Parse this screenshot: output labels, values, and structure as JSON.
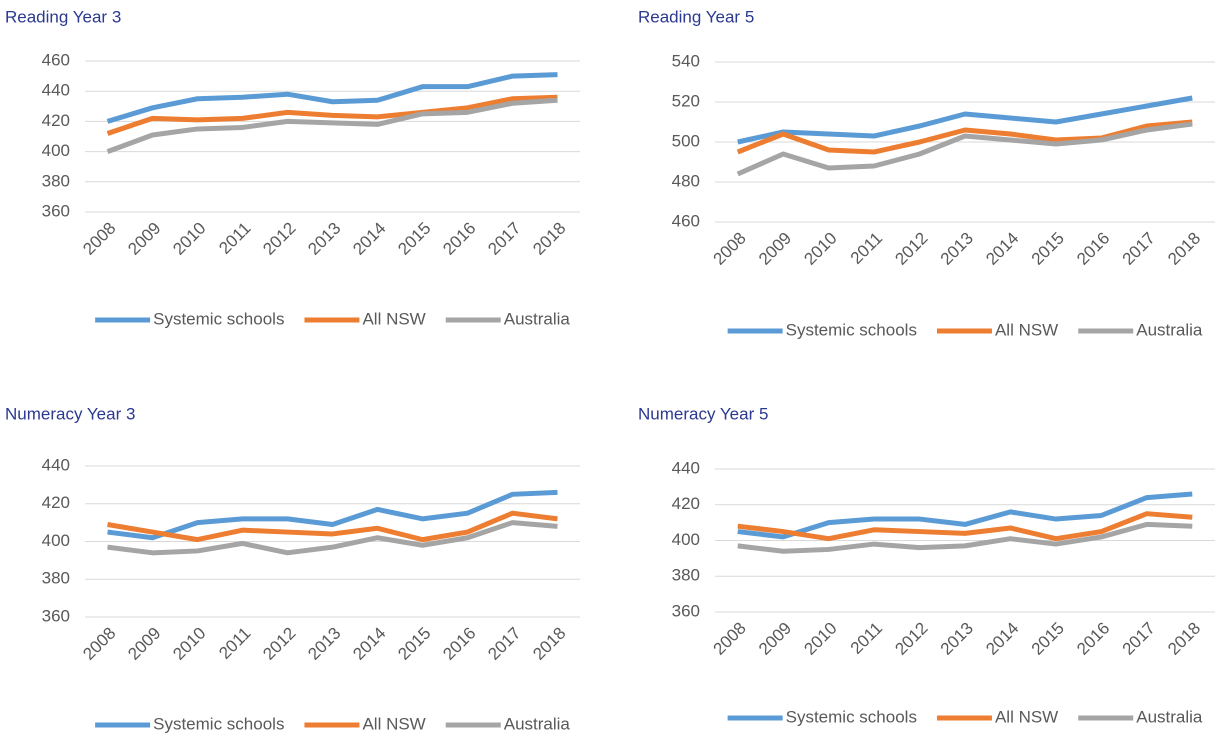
{
  "chart_data": [
    {
      "type": "line",
      "title": "Reading Year 3",
      "categories": [
        "2008",
        "2009",
        "2010",
        "2011",
        "2012",
        "2013",
        "2014",
        "2015",
        "2016",
        "2017",
        "2018"
      ],
      "series": [
        {
          "name": "Systemic schools",
          "color": "#5b9bd5",
          "values": [
            420,
            429,
            435,
            436,
            438,
            433,
            434,
            443,
            443,
            450,
            451
          ]
        },
        {
          "name": "All NSW",
          "color": "#ed7d31",
          "values": [
            412,
            422,
            421,
            422,
            426,
            424,
            423,
            426,
            429,
            435,
            436
          ]
        },
        {
          "name": "Australia",
          "color": "#a5a5a5",
          "values": [
            400,
            411,
            415,
            416,
            420,
            419,
            418,
            425,
            426,
            432,
            434
          ]
        }
      ],
      "ylim": [
        360,
        460
      ],
      "yticks": [
        360,
        380,
        400,
        420,
        440,
        460
      ],
      "grid": true,
      "legend": "bottom"
    },
    {
      "type": "line",
      "title": "Reading Year 5",
      "categories": [
        "2008",
        "2009",
        "2010",
        "2011",
        "2012",
        "2013",
        "2014",
        "2015",
        "2016",
        "2017",
        "2018"
      ],
      "series": [
        {
          "name": "Systemic schools",
          "color": "#5b9bd5",
          "values": [
            500,
            505,
            504,
            503,
            508,
            514,
            512,
            510,
            514,
            518,
            522
          ]
        },
        {
          "name": "All NSW",
          "color": "#ed7d31",
          "values": [
            495,
            504,
            496,
            495,
            500,
            506,
            504,
            501,
            502,
            508,
            510
          ]
        },
        {
          "name": "Australia",
          "color": "#a5a5a5",
          "values": [
            484,
            494,
            487,
            488,
            494,
            503,
            501,
            499,
            501,
            506,
            509
          ]
        }
      ],
      "ylim": [
        460,
        540
      ],
      "yticks": [
        460,
        480,
        500,
        520,
        540
      ],
      "grid": true,
      "legend": "bottom"
    },
    {
      "type": "line",
      "title": "Numeracy Year 3",
      "categories": [
        "2008",
        "2009",
        "2010",
        "2011",
        "2012",
        "2013",
        "2014",
        "2015",
        "2016",
        "2017",
        "2018"
      ],
      "series": [
        {
          "name": "Systemic schools",
          "color": "#5b9bd5",
          "values": [
            405,
            402,
            410,
            412,
            412,
            409,
            417,
            412,
            415,
            425,
            426
          ]
        },
        {
          "name": "All NSW",
          "color": "#ed7d31",
          "values": [
            409,
            405,
            401,
            406,
            405,
            404,
            407,
            401,
            405,
            415,
            412
          ]
        },
        {
          "name": "Australia",
          "color": "#a5a5a5",
          "values": [
            397,
            394,
            395,
            399,
            394,
            397,
            402,
            398,
            402,
            410,
            408
          ]
        }
      ],
      "ylim": [
        360,
        440
      ],
      "yticks": [
        360,
        380,
        400,
        420,
        440
      ],
      "grid": true,
      "legend": "bottom"
    },
    {
      "type": "line",
      "title": "Numeracy Year 5",
      "categories": [
        "2008",
        "2009",
        "2010",
        "2011",
        "2012",
        "2013",
        "2014",
        "2015",
        "2016",
        "2017",
        "2018"
      ],
      "series": [
        {
          "name": "Systemic schools",
          "color": "#5b9bd5",
          "values": [
            405,
            402,
            410,
            412,
            412,
            409,
            416,
            412,
            414,
            424,
            426
          ]
        },
        {
          "name": "All NSW",
          "color": "#ed7d31",
          "values": [
            408,
            405,
            401,
            406,
            405,
            404,
            407,
            401,
            405,
            415,
            413
          ]
        },
        {
          "name": "Australia",
          "color": "#a5a5a5",
          "values": [
            397,
            394,
            395,
            398,
            396,
            397,
            401,
            398,
            402,
            409,
            408
          ]
        }
      ],
      "ylim": [
        360,
        440
      ],
      "yticks": [
        360,
        380,
        400,
        420,
        440
      ],
      "grid": true,
      "legend": "bottom"
    }
  ]
}
